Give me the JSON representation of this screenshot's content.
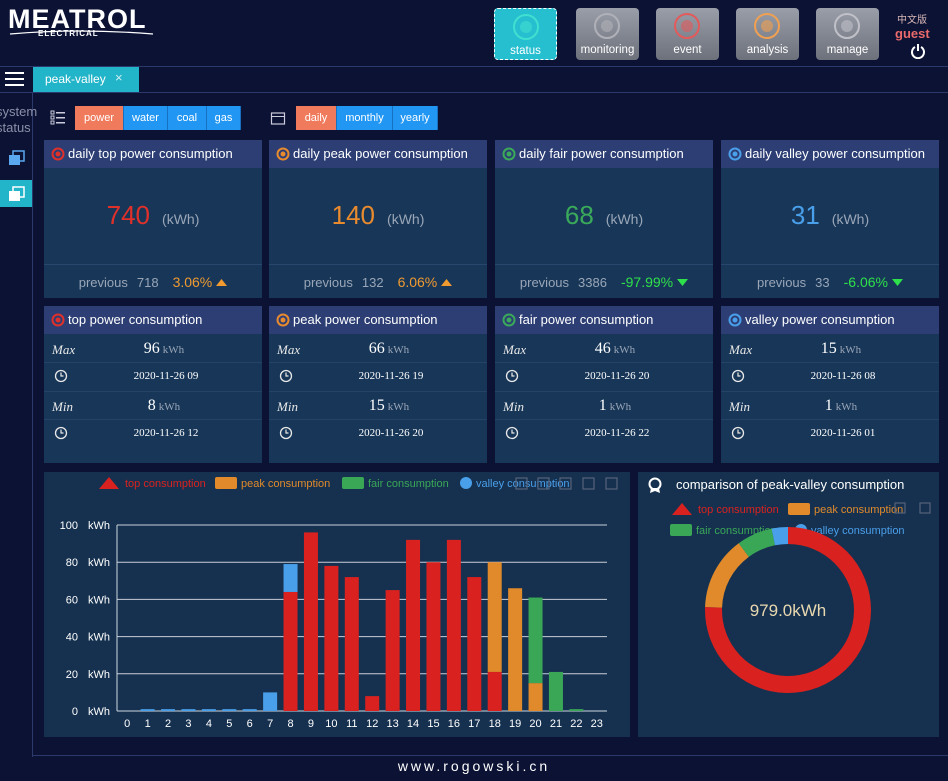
{
  "header": {
    "logo": "MEATROL",
    "logo_sub": "ELECTRICAL",
    "nav": [
      "status",
      "monitoring",
      "event",
      "analysis",
      "manage"
    ],
    "language": "中文版",
    "user": "guest"
  },
  "tab": "peak-valley",
  "sidebar": "system status",
  "filters": {
    "energy": [
      "power",
      "water",
      "coal",
      "gas"
    ],
    "period": [
      "daily",
      "monthly",
      "yearly"
    ]
  },
  "summary_cards": [
    {
      "title": "daily top power consumption",
      "value": 740,
      "unit": "(kWh)",
      "previous_label": "previous",
      "previous": 718,
      "change": "3.06%",
      "direction": "up",
      "color": "#e0302a"
    },
    {
      "title": "daily peak power consumption",
      "value": 140,
      "unit": "(kWh)",
      "previous_label": "previous",
      "previous": 132,
      "change": "6.06%",
      "direction": "up",
      "color": "#e88a2e"
    },
    {
      "title": "daily fair power consumption",
      "value": 68,
      "unit": "(kWh)",
      "previous_label": "previous",
      "previous": 3386,
      "change": "-97.99%",
      "direction": "down",
      "color": "#3aaa5a"
    },
    {
      "title": "daily valley power consumption",
      "value": 31,
      "unit": "(kWh)",
      "previous_label": "previous",
      "previous": 33,
      "change": "-6.06%",
      "direction": "down",
      "color": "#4a9fea"
    }
  ],
  "stat_cards": [
    {
      "title": "top power consumption",
      "max_label": "Max",
      "max": 96,
      "unit": "kWh",
      "max_time": "2020-11-26 09",
      "min_label": "Min",
      "min": 8,
      "min_time": "2020-11-26 12",
      "color": "#e0302a"
    },
    {
      "title": "peak power consumption",
      "max_label": "Max",
      "max": 66,
      "unit": "kWh",
      "max_time": "2020-11-26 19",
      "min_label": "Min",
      "min": 15,
      "min_time": "2020-11-26 20",
      "color": "#e88a2e"
    },
    {
      "title": "fair power consumption",
      "max_label": "Max",
      "max": 46,
      "unit": "kWh",
      "max_time": "2020-11-26 20",
      "min_label": "Min",
      "min": 1,
      "min_time": "2020-11-26 22",
      "color": "#3aaa5a"
    },
    {
      "title": "valley power consumption",
      "max_label": "Max",
      "max": 15,
      "unit": "kWh",
      "max_time": "2020-11-26 08",
      "min_label": "Min",
      "min": 1,
      "min_time": "2020-11-26 01",
      "color": "#4a9fea"
    }
  ],
  "chart_data": [
    {
      "type": "bar",
      "stacked": true,
      "categories": [
        "0",
        "1",
        "2",
        "3",
        "4",
        "5",
        "6",
        "7",
        "8",
        "9",
        "10",
        "11",
        "12",
        "13",
        "14",
        "15",
        "16",
        "17",
        "18",
        "19",
        "20",
        "21",
        "22",
        "23"
      ],
      "series": [
        {
          "name": "top consumption",
          "color": "#d9221f",
          "symbol": "triangle",
          "values": [
            null,
            null,
            null,
            null,
            null,
            null,
            null,
            null,
            64,
            96,
            78,
            72,
            8,
            65,
            92,
            80,
            92,
            72,
            21,
            null,
            null,
            null,
            null,
            null
          ]
        },
        {
          "name": "peak consumption",
          "color": "#e08a2b",
          "symbol": "rect",
          "values": [
            null,
            null,
            null,
            null,
            null,
            null,
            null,
            null,
            null,
            null,
            null,
            null,
            null,
            null,
            null,
            null,
            null,
            null,
            59,
            66,
            15,
            null,
            null,
            null
          ]
        },
        {
          "name": "fair consumption",
          "color": "#3aa757",
          "symbol": "rect",
          "values": [
            null,
            null,
            null,
            null,
            null,
            null,
            null,
            null,
            null,
            null,
            null,
            null,
            null,
            null,
            null,
            null,
            null,
            null,
            null,
            null,
            46,
            21,
            1,
            null
          ]
        },
        {
          "name": "valley consumption",
          "color": "#4a9fea",
          "symbol": "circle",
          "values": [
            null,
            1,
            1,
            1,
            1,
            1,
            1,
            10,
            15,
            null,
            null,
            null,
            null,
            null,
            null,
            null,
            null,
            null,
            null,
            null,
            null,
            null,
            null,
            null
          ]
        }
      ],
      "ylim": [
        0,
        100
      ],
      "yticks": [
        0,
        20,
        40,
        60,
        80,
        100
      ],
      "y_unit": "kWh",
      "grid": true
    },
    {
      "type": "donut",
      "title": "comparison of peak-valley consumption",
      "categories": [
        "top consumption",
        "peak consumption",
        "fair consumption",
        "valley consumption"
      ],
      "values": [
        740,
        140,
        68,
        31
      ],
      "colors": [
        "#d9221f",
        "#e08a2b",
        "#3aa757",
        "#4a9fea"
      ],
      "symbols": [
        "triangle",
        "rect",
        "rect",
        "circle"
      ],
      "center_label": "979.0kWh"
    }
  ],
  "footer": "www.rogowski.cn"
}
